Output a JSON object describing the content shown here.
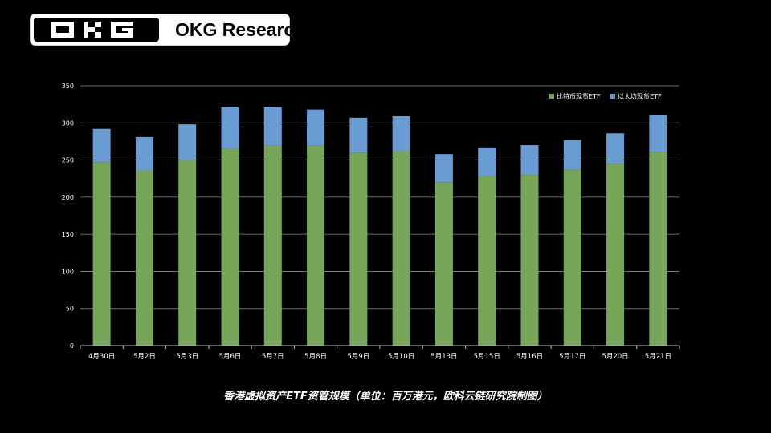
{
  "brand": {
    "name": "OKG Research",
    "logo_text": "OKG"
  },
  "caption": "香港虚拟资产ETF资管规模（单位：百万港元，欧科云链研究院制图）",
  "colors": {
    "background": "#000000",
    "btc": "#77a55a",
    "eth": "#6a9bd3",
    "grid": "#8a8a8a",
    "text": "#ffffff"
  },
  "chart_data": {
    "type": "bar",
    "stacked": true,
    "categories": [
      "4月30日",
      "5月2日",
      "5月3日",
      "5月6日",
      "5月7日",
      "5月8日",
      "5月9日",
      "5月10日",
      "5月13日",
      "5月15日",
      "5月16日",
      "5月17日",
      "5月20日",
      "5月21日"
    ],
    "series": [
      {
        "name": "比特币现货ETF",
        "color": "#77a55a",
        "values": [
          247,
          236,
          250,
          266,
          270,
          270,
          260,
          262,
          220,
          228,
          230,
          237,
          245,
          261
        ]
      },
      {
        "name": "以太坊现货ETF",
        "color": "#6a9bd3",
        "values": [
          45,
          45,
          48,
          55,
          51,
          48,
          47,
          47,
          38,
          39,
          40,
          40,
          41,
          49
        ]
      }
    ],
    "ylim": [
      0,
      350
    ],
    "yticks": [
      0,
      50,
      100,
      150,
      200,
      250,
      300,
      350
    ],
    "grid": true,
    "legend_position": "top-right",
    "title": "",
    "xlabel": "",
    "ylabel": ""
  }
}
